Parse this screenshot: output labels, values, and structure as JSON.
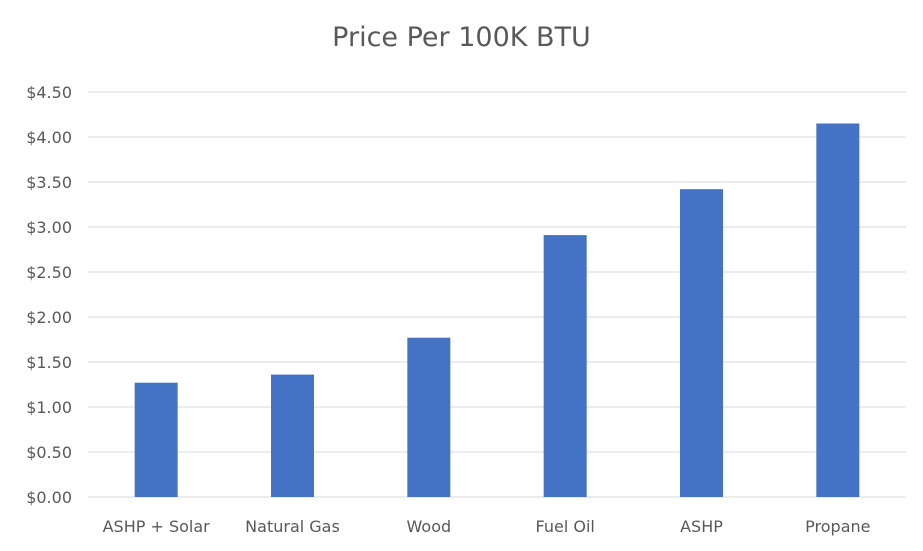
{
  "chart_data": {
    "type": "bar",
    "title": "Price Per 100K BTU",
    "categories": [
      "ASHP + Solar",
      "Natural Gas",
      "Wood",
      "Fuel Oil",
      "ASHP",
      "Propane"
    ],
    "series": [
      {
        "values": [
          1.27,
          1.36,
          1.77,
          2.91,
          3.42,
          4.15
        ]
      }
    ],
    "ylim": [
      0,
      4.5
    ],
    "yticks": [
      0,
      0.5,
      1.0,
      1.5,
      2.0,
      2.5,
      3.0,
      3.5,
      4.0,
      4.5
    ],
    "ytick_labels": [
      "$0.00",
      "$0.50",
      "$1.00",
      "$1.50",
      "$2.00",
      "$2.50",
      "$3.00",
      "$3.50",
      "$4.00",
      "$4.50"
    ],
    "xlabel": "",
    "ylabel": "",
    "grid": true,
    "legend": "none",
    "colors": {
      "bar": "#4472C4",
      "grid": "#D9D9D9",
      "text": "#595959"
    }
  }
}
